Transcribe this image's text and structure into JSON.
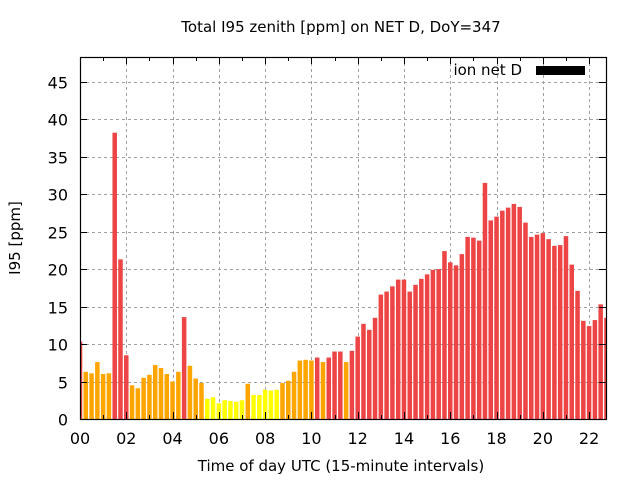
{
  "chart_data": {
    "type": "bar",
    "title": "Total I95 zenith [ppm] on NET D, DoY=347",
    "xlabel": "Time of day UTC (15-minute intervals)",
    "ylabel": "I95 [ppm]",
    "xlim": [
      0,
      22.73
    ],
    "ylim": [
      0,
      48.3
    ],
    "x_step_hours": 0.25,
    "grid": true,
    "legend_position": "top-right",
    "x_ticks": [
      {
        "value": 0,
        "label": "00"
      },
      {
        "value": 2,
        "label": "02"
      },
      {
        "value": 4,
        "label": "04"
      },
      {
        "value": 6,
        "label": "06"
      },
      {
        "value": 8,
        "label": "08"
      },
      {
        "value": 10,
        "label": "10"
      },
      {
        "value": 12,
        "label": "12"
      },
      {
        "value": 14,
        "label": "14"
      },
      {
        "value": 16,
        "label": "16"
      },
      {
        "value": 18,
        "label": "18"
      },
      {
        "value": 20,
        "label": "20"
      },
      {
        "value": 22,
        "label": "22"
      }
    ],
    "y_ticks": [
      {
        "value": 0,
        "label": "0"
      },
      {
        "value": 5,
        "label": "5"
      },
      {
        "value": 10,
        "label": "10"
      },
      {
        "value": 15,
        "label": "15"
      },
      {
        "value": 20,
        "label": "20"
      },
      {
        "value": 25,
        "label": "25"
      },
      {
        "value": 30,
        "label": "30"
      },
      {
        "value": 35,
        "label": "35"
      },
      {
        "value": 40,
        "label": "40"
      },
      {
        "value": 45,
        "label": "45"
      }
    ],
    "colors": {
      "red": "#ed4545",
      "orange": "#ffa500",
      "yellow": "#ffff00",
      "legend": "#000000"
    },
    "series": [
      {
        "name": "ion net D",
        "values": [
          10.3,
          6.3,
          6.1,
          7.6,
          6.0,
          6.1,
          38.2,
          21.3,
          8.5,
          4.5,
          4.1,
          5.5,
          5.9,
          7.2,
          6.8,
          6.0,
          5.0,
          6.3,
          13.6,
          7.1,
          5.4,
          4.8,
          2.7,
          2.9,
          2.1,
          2.5,
          2.4,
          2.3,
          2.5,
          4.7,
          3.2,
          3.2,
          3.9,
          3.8,
          3.9,
          4.8,
          5.1,
          6.3,
          7.8,
          7.9,
          7.8,
          8.2,
          7.6,
          8.2,
          9.0,
          9.0,
          7.6,
          9.1,
          11.0,
          12.7,
          11.9,
          13.5,
          16.6,
          17.0,
          17.7,
          18.6,
          18.6,
          17.0,
          17.9,
          18.7,
          19.3,
          19.9,
          20.0,
          22.4,
          20.9,
          20.5,
          22.0,
          24.3,
          24.2,
          23.8,
          31.5,
          26.5,
          27.0,
          27.8,
          28.2,
          28.7,
          28.3,
          26.2,
          24.3,
          24.6,
          24.8,
          24.0,
          23.1,
          23.2,
          24.4,
          20.6,
          17.1,
          13.1,
          12.4,
          13.2,
          15.3,
          13.5
        ],
        "bar_colors": [
          "red",
          "orange",
          "orange",
          "orange",
          "orange",
          "orange",
          "red",
          "red",
          "red",
          "orange",
          "orange",
          "orange",
          "orange",
          "orange",
          "orange",
          "orange",
          "orange",
          "orange",
          "red",
          "orange",
          "orange",
          "orange",
          "yellow",
          "yellow",
          "yellow",
          "yellow",
          "yellow",
          "yellow",
          "yellow",
          "orange",
          "yellow",
          "yellow",
          "yellow",
          "yellow",
          "yellow",
          "orange",
          "orange",
          "orange",
          "orange",
          "orange",
          "orange",
          "red",
          "orange",
          "red",
          "red",
          "red",
          "orange",
          "red",
          "red",
          "red",
          "red",
          "red",
          "red",
          "red",
          "red",
          "red",
          "red",
          "red",
          "red",
          "red",
          "red",
          "red",
          "red",
          "red",
          "red",
          "red",
          "red",
          "red",
          "red",
          "red",
          "red",
          "red",
          "red",
          "red",
          "red",
          "red",
          "red",
          "red",
          "red",
          "red",
          "red",
          "red",
          "red",
          "red",
          "red",
          "red",
          "red",
          "red",
          "red",
          "red",
          "red",
          "red"
        ]
      }
    ]
  }
}
